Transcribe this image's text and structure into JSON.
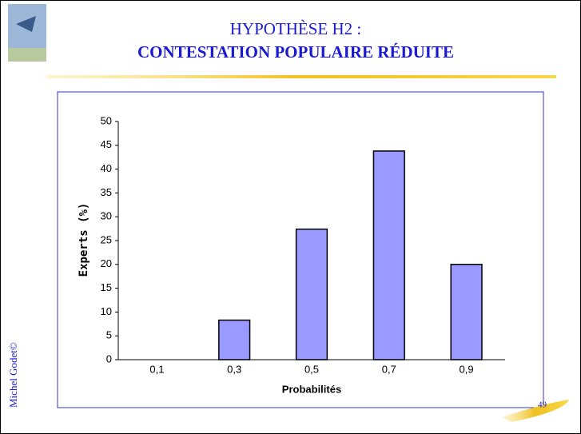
{
  "slide": {
    "title_line1": "HYPOTHÈSE H2 :",
    "title_line2": "CONTESTATION POPULAIRE RÉDUITE",
    "author": "Michel Godet©",
    "page": "49"
  },
  "chart_data": {
    "type": "bar",
    "x_label": "Probabilités",
    "y_label": "Experts (%)",
    "categories": [
      "0,1",
      "0,3",
      "0,5",
      "0,7",
      "0,9"
    ],
    "values": [
      0,
      8.3,
      27.4,
      43.8,
      20
    ],
    "color": "#9999ff",
    "ylim": [
      0,
      50
    ],
    "yticks": [
      0,
      5,
      10,
      15,
      20,
      25,
      30,
      35,
      40,
      45,
      50
    ],
    "grid": false
  }
}
